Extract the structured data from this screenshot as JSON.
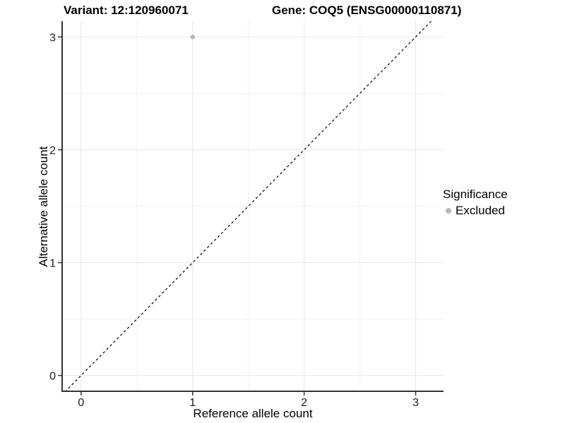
{
  "titles": {
    "variant": "Variant: 12:120960071",
    "gene": "Gene: COQ5 (ENSG00000110871)"
  },
  "chart_data": {
    "type": "scatter",
    "title": "Variant: 12:120960071   Gene: COQ5 (ENSG00000110871)",
    "xlabel": "Reference allele count",
    "ylabel": "Alternative allele count",
    "xticks": [
      0,
      1,
      2,
      3
    ],
    "yticks": [
      0,
      1,
      2,
      3
    ],
    "minor_gridlines": [
      0.5,
      1.5,
      2.5
    ],
    "xlim": [
      -0.17,
      3.25
    ],
    "ylim": [
      -0.14,
      3.14
    ],
    "grid": true,
    "points": [
      {
        "x": 1,
        "y": 3,
        "significance": "Excluded"
      }
    ],
    "identity_line": {
      "slope": 1,
      "intercept": 0,
      "style": "dashed"
    },
    "legend": {
      "title": "Significance",
      "position": "right",
      "items": [
        {
          "label": "Excluded",
          "color": "#b9b9b9",
          "marker": "circle"
        }
      ]
    },
    "colors": {
      "point": "#b9b9b9",
      "major_grid": "#e7e7e7",
      "minor_grid": "#f2f2f2",
      "axis_line": "#333333",
      "tick_text": "#1a1a1a",
      "identity_line": "#000000",
      "background": "#ffffff"
    }
  }
}
